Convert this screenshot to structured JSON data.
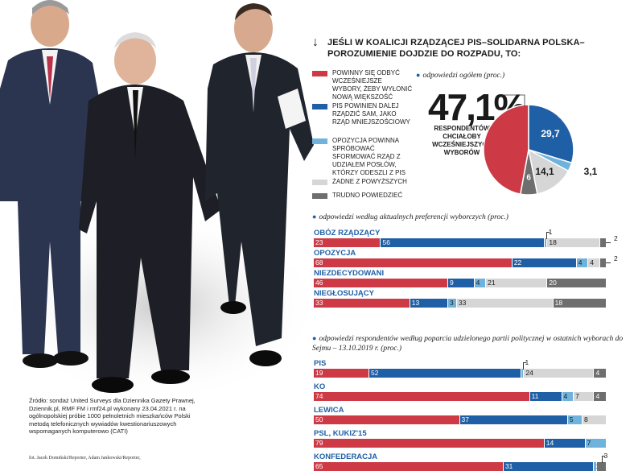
{
  "colors": {
    "red": "#cd3a46",
    "blue": "#1f5fa6",
    "lightblue": "#6fb3dc",
    "lightgray": "#d6d6d6",
    "darkgray": "#6e6e6e",
    "accent": "#1f5fa6"
  },
  "header": {
    "arrow_icon": "arrow-down-icon",
    "title": "JEŚLI W KOALICJI RZĄDZĄCEJ PiS–SOLIDARNA POLSKA–POROZUMIENIE DOJDZIE DO ROZPADU, TO:"
  },
  "legend": [
    {
      "label": "POWINNY SIĘ ODBYĆ WCZEŚNIEJSZE WYBORY, ŻEBY WYŁONIĆ NOWĄ WIĘKSZOŚĆ",
      "color": "#cd3a46"
    },
    {
      "label": "PiS POWINIEN DALEJ RZĄDZIĆ SAM, JAKO RZĄD MNIEJSZOŚCIOWY",
      "color": "#1f5fa6"
    },
    {
      "label": "OPOZYCJA POWINNA SPRÓBOWAĆ SFORMOWAĆ RZĄD Z UDZIAŁEM POSŁÓW, KTÓRZY ODESZLI Z PiS",
      "color": "#6fb3dc"
    },
    {
      "label": "ŻADNE Z POWYŻSZYCH",
      "color": "#d6d6d6"
    },
    {
      "label": "TRUDNO POWIEDZIEĆ",
      "color": "#6e6e6e"
    }
  ],
  "overall": {
    "label": "odpowiedzi ogółem (proc.)",
    "big_value": "47,1",
    "big_unit": "%",
    "big_caption": "RESPONDENTÓW CHCIAŁOBY WCZEŚNIEJSZYCH WYBORÓW"
  },
  "section2": {
    "label": "odpowiedzi według aktualnych preferencji wyborczych (proc.)"
  },
  "section3": {
    "label": "odpowiedzi respondentów według poparcia udzielonego partii politycznej w ostatnich wyborach do Sejmu – 13.10.2019 r. (proc.)"
  },
  "chart_data": [
    {
      "type": "pie",
      "title": "odpowiedzi ogółem (proc.)",
      "categories": [
        "POWINNY SIĘ ODBYĆ WCZEŚNIEJSZE WYBORY, ŻEBY WYŁONIĆ NOWĄ WIĘKSZOŚĆ",
        "PiS POWINIEN DALEJ RZĄDZIĆ SAM, JAKO RZĄD MNIEJSZOŚCIOWY",
        "OPOZYCJA POWINNA SPRÓBOWAĆ SFORMOWAĆ RZĄD Z UDZIAŁEM POSŁÓW, KTÓRZY ODESZLI Z PiS",
        "ŻADNE Z POWYŻSZYCH",
        "TRUDNO POWIEDZIEĆ"
      ],
      "values": [
        47.1,
        29.7,
        3.1,
        14.1,
        6
      ],
      "labels": [
        "",
        "29,7",
        "3,1",
        "14,1",
        "6"
      ],
      "colors": [
        "#cd3a46",
        "#1f5fa6",
        "#6fb3dc",
        "#d6d6d6",
        "#6e6e6e"
      ]
    },
    {
      "type": "bar",
      "stacked": true,
      "orientation": "horizontal",
      "title": "odpowiedzi według aktualnych preferencji wyborczych (proc.)",
      "categories": [
        "OBÓZ RZĄDZĄCY",
        "OPOZYCJA",
        "NIEZDECYDOWANI",
        "NIEGŁOSUJĄCY"
      ],
      "rows": [
        [
          {
            "v": 23,
            "c": "red",
            "l": "23"
          },
          {
            "v": 56,
            "c": "blue",
            "l": "56"
          },
          {
            "v": 1,
            "c": "lightblue",
            "l": "1",
            "out": "above"
          },
          {
            "v": 18,
            "c": "lightgray",
            "l": "18"
          },
          {
            "v": 2,
            "c": "darkgray",
            "l": "2",
            "out": "right"
          }
        ],
        [
          {
            "v": 68,
            "c": "red",
            "l": "68"
          },
          {
            "v": 22,
            "c": "blue",
            "l": "22"
          },
          {
            "v": 4,
            "c": "lightblue",
            "l": "4"
          },
          {
            "v": 4,
            "c": "lightgray",
            "l": "4"
          },
          {
            "v": 2,
            "c": "darkgray",
            "l": "2",
            "out": "right"
          }
        ],
        [
          {
            "v": 46,
            "c": "red",
            "l": "46"
          },
          {
            "v": 9,
            "c": "blue",
            "l": "9"
          },
          {
            "v": 4,
            "c": "lightblue",
            "l": "4"
          },
          {
            "v": 21,
            "c": "lightgray",
            "l": "21"
          },
          {
            "v": 20,
            "c": "darkgray",
            "l": "20"
          }
        ],
        [
          {
            "v": 33,
            "c": "red",
            "l": "33"
          },
          {
            "v": 13,
            "c": "blue",
            "l": "13"
          },
          {
            "v": 3,
            "c": "lightblue",
            "l": "3"
          },
          {
            "v": 33,
            "c": "lightgray",
            "l": "33"
          },
          {
            "v": 18,
            "c": "darkgray",
            "l": "18"
          }
        ]
      ]
    },
    {
      "type": "bar",
      "stacked": true,
      "orientation": "horizontal",
      "title": "odpowiedzi respondentów według poparcia udzielonego partii politycznej w ostatnich wyborach do Sejmu – 13.10.2019 r. (proc.)",
      "categories": [
        "PiS",
        "KO",
        "LEWICA",
        "PSL, KUKIZ'15",
        "KONFEDERACJA"
      ],
      "rows": [
        [
          {
            "v": 19,
            "c": "red",
            "l": "19"
          },
          {
            "v": 52,
            "c": "blue",
            "l": "52"
          },
          {
            "v": 1,
            "c": "lightblue",
            "l": "1",
            "out": "above"
          },
          {
            "v": 24,
            "c": "lightgray",
            "l": "24"
          },
          {
            "v": 4,
            "c": "darkgray",
            "l": "4"
          }
        ],
        [
          {
            "v": 74,
            "c": "red",
            "l": "74"
          },
          {
            "v": 11,
            "c": "blue",
            "l": "11"
          },
          {
            "v": 4,
            "c": "lightblue",
            "l": "4"
          },
          {
            "v": 7,
            "c": "lightgray",
            "l": "7"
          },
          {
            "v": 4,
            "c": "darkgray",
            "l": "4"
          }
        ],
        [
          {
            "v": 50,
            "c": "red",
            "l": "50"
          },
          {
            "v": 37,
            "c": "blue",
            "l": "37"
          },
          {
            "v": 5,
            "c": "lightblue",
            "l": "5"
          },
          {
            "v": 8,
            "c": "lightgray",
            "l": "8"
          }
        ],
        [
          {
            "v": 79,
            "c": "red",
            "l": "79"
          },
          {
            "v": 14,
            "c": "blue",
            "l": "14"
          },
          {
            "v": 7,
            "c": "lightblue",
            "l": "7"
          }
        ],
        [
          {
            "v": 65,
            "c": "red",
            "l": "65"
          },
          {
            "v": 31,
            "c": "blue",
            "l": "31"
          },
          {
            "v": 1,
            "c": "lightblue",
            "l": "1"
          },
          {
            "v": 3,
            "c": "darkgray",
            "l": "3",
            "out": "above"
          }
        ]
      ]
    }
  ],
  "source": "Źródło: sondaż United Surveys dla Dziennika Gazety Prawnej, Dziennik.pl, RMF FM i rmf24.pl wykonany 23.04.2021 r. na ogólnopolskiej próbie 1000 pełnoletnich mieszkańców Polski metodą telefonicznych wywiadów kwestionariuszowych wspomaganych komputerowo (CATI)",
  "photo_credit": "fot. Jacek Domiński/Reporter, Adam Jankowski/Reporter,"
}
